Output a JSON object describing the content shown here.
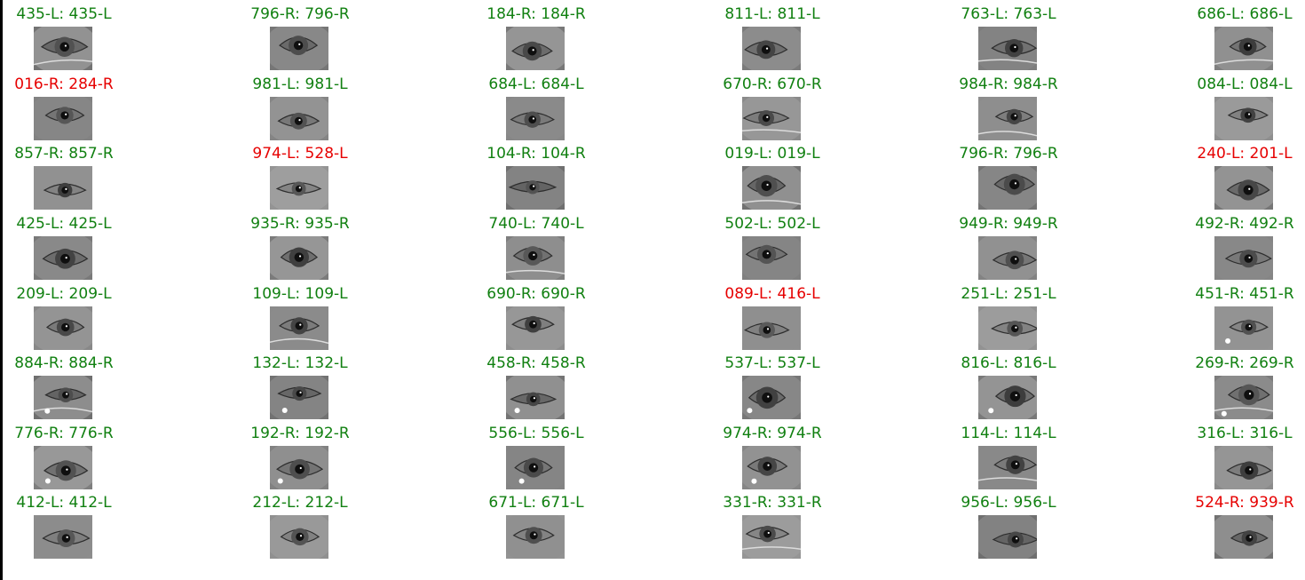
{
  "colors": {
    "correct": "#118011",
    "incorrect": "#e60000"
  },
  "grid": {
    "columns": 6,
    "rows": [
      [
        "435-L: 435-L",
        "796-R: 796-R",
        "184-R: 184-R",
        "811-L: 811-L",
        "763-L: 763-L",
        "686-L: 686-L"
      ],
      [
        "016-R: 284-R",
        "981-L: 981-L",
        "684-L: 684-L",
        "670-R: 670-R",
        "984-R: 984-R",
        "084-L: 084-L"
      ],
      [
        "857-R: 857-R",
        "974-L: 528-L",
        "104-R: 104-R",
        "019-L: 019-L",
        "796-R: 796-R",
        "240-L: 201-L"
      ],
      [
        "425-L: 425-L",
        "935-R: 935-R",
        "740-L: 740-L",
        "502-L: 502-L",
        "949-R: 949-R",
        "492-R: 492-R"
      ],
      [
        "209-L: 209-L",
        "109-L: 109-L",
        "690-R: 690-R",
        "089-L: 416-L",
        "251-L: 251-L",
        "451-R: 451-R"
      ],
      [
        "884-R: 884-R",
        "132-L: 132-L",
        "458-R: 458-R",
        "537-L: 537-L",
        "816-L: 816-L",
        "269-R: 269-R"
      ],
      [
        "776-R: 776-R",
        "192-R: 192-R",
        "556-L: 556-L",
        "974-R: 974-R",
        "114-L: 114-L",
        "316-L: 316-L"
      ],
      [
        "412-L: 412-L",
        "212-L: 212-L",
        "671-L: 671-L",
        "331-R: 331-R",
        "956-L: 956-L",
        "524-R: 939-R"
      ]
    ]
  }
}
